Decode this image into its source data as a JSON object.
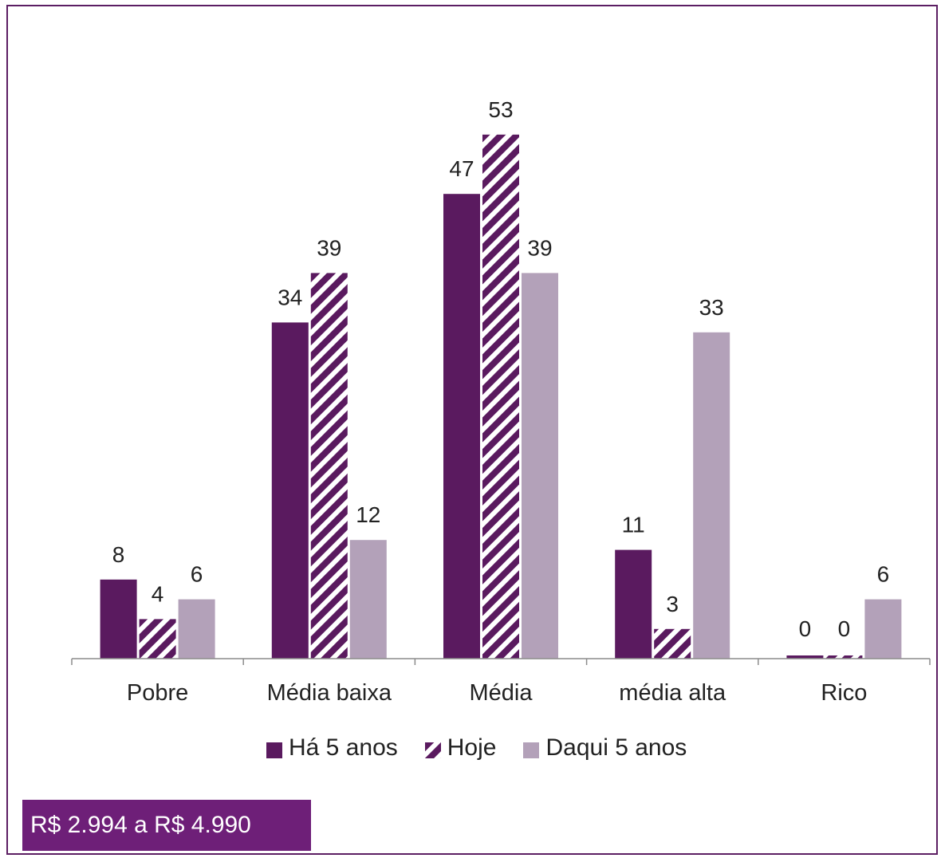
{
  "colors": {
    "frame": "#5c1e63",
    "series_dark": "#5a1a5f",
    "series_hatched": "#5a1a5f",
    "series_light": "#b3a1b9",
    "badge": "#6e1f78"
  },
  "chart_data": {
    "type": "bar",
    "categories": [
      "Pobre",
      "Média baixa",
      "Média",
      "média alta",
      "Rico"
    ],
    "series": [
      {
        "name": "Há 5 anos",
        "values": [
          8,
          34,
          47,
          11,
          0
        ],
        "pattern": "solid-dark"
      },
      {
        "name": "Hoje",
        "values": [
          4,
          39,
          53,
          3,
          0
        ],
        "pattern": "hatched"
      },
      {
        "name": "Daqui 5 anos",
        "values": [
          6,
          12,
          39,
          33,
          6
        ],
        "pattern": "solid-light"
      }
    ],
    "ylim": [
      0,
      56
    ],
    "grid": false,
    "legend_position": "bottom",
    "data_labels": true
  },
  "footer": {
    "label": "R$ 2.994 a R$ 4.990"
  }
}
